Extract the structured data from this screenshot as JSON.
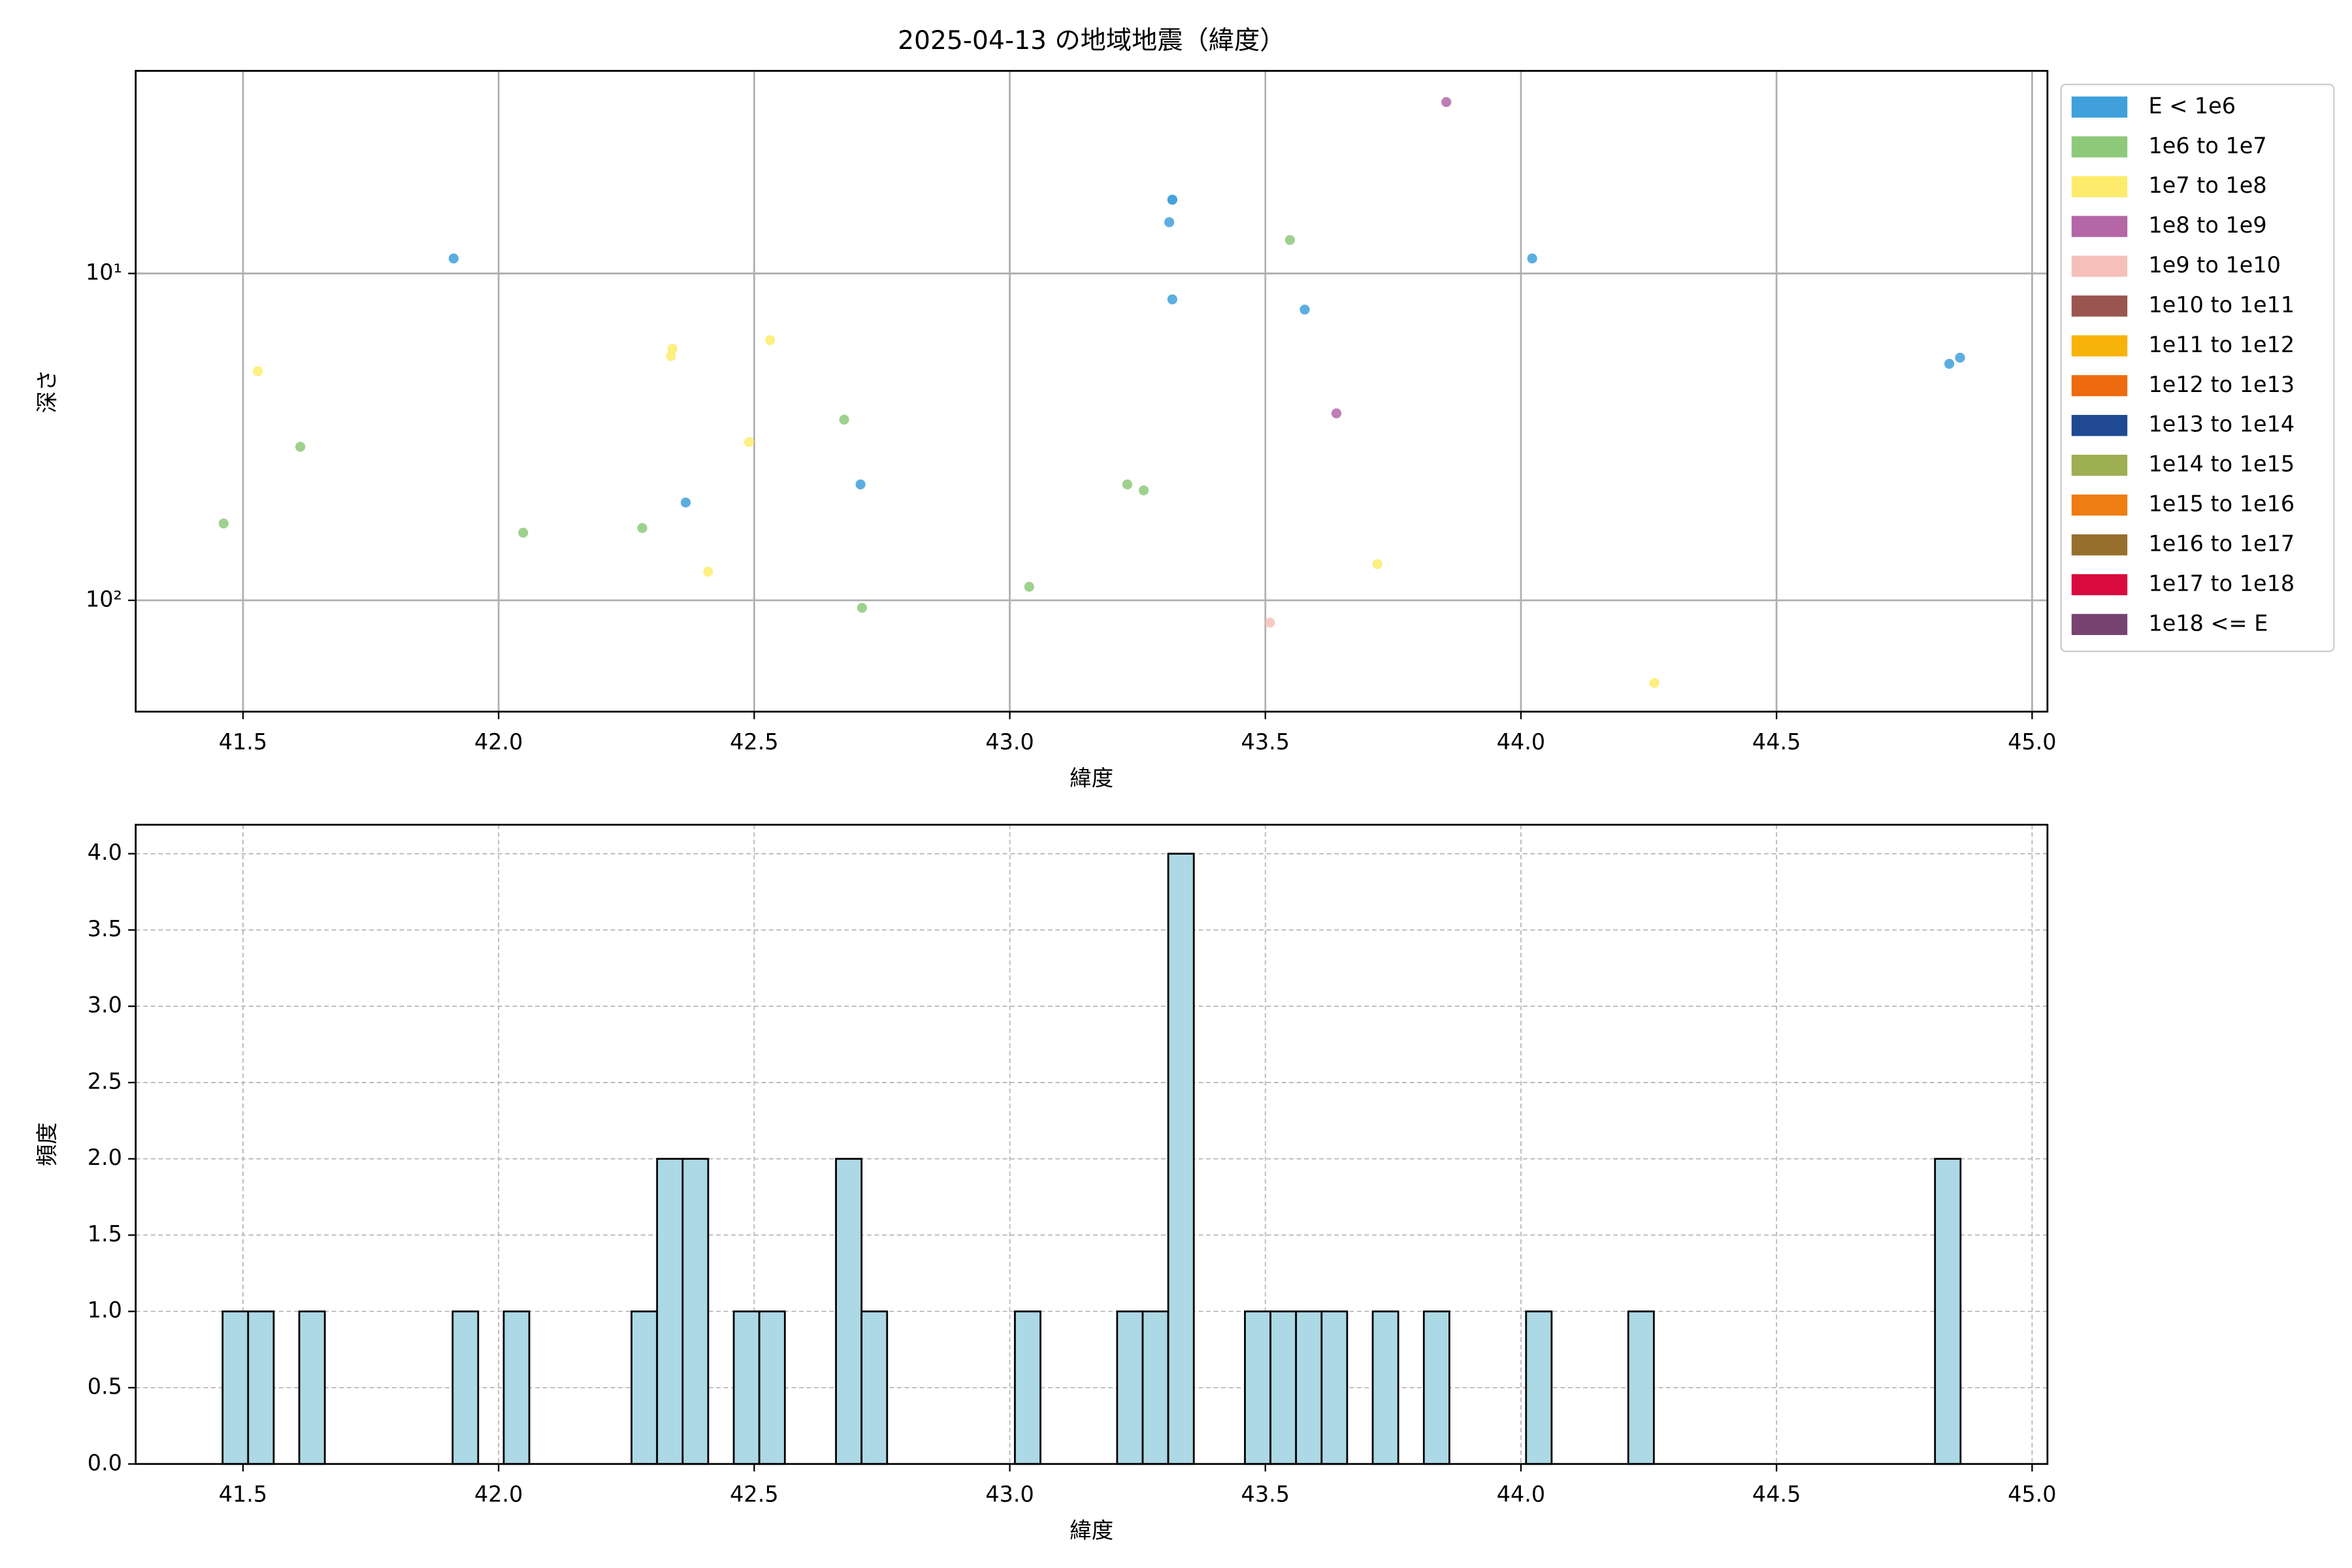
{
  "chart_data": [
    {
      "type": "scatter",
      "title": "2025-04-13 の地域地震（緯度）",
      "xlabel": "緯度",
      "ylabel": "深さ",
      "xlim": [
        41.29,
        45.03
      ],
      "xticks": [
        41.5,
        {
          "value": 42.0,
          "label": "42.0"
        },
        42.5,
        {
          "value": 43.0,
          "label": "43.0"
        },
        43.5,
        {
          "value": 44.0,
          "label": "44.0"
        },
        44.5,
        {
          "value": 45.0,
          "label": "45.0"
        }
      ],
      "ylim": [
        2.4,
        219
      ],
      "yscale": "log",
      "y_inverted": true,
      "yticks": [
        {
          "value": 10,
          "label": "10¹"
        },
        {
          "value": 100,
          "label": "10²"
        }
      ],
      "grid": true,
      "legend": "outside-right",
      "series": [
        {
          "name": "E < 1e6",
          "color": "#3fa0dc",
          "x": [
            41.912,
            42.366,
            42.708,
            43.318,
            43.318,
            43.312,
            43.318,
            43.577,
            44.022,
            44.838,
            44.859
          ],
          "values": [
            9.0,
            50.2,
            44.2,
            5.95,
            5.95,
            6.97,
            12.0,
            12.9,
            9.0,
            18.9,
            18.1
          ]
        },
        {
          "name": "1e6 to 1e7",
          "color": "#8ec97a",
          "x": [
            41.462,
            41.612,
            42.048,
            42.281,
            42.676,
            42.711,
            43.038,
            43.23,
            43.262,
            43.548
          ],
          "values": [
            58.2,
            33.9,
            62.1,
            60.1,
            28.0,
            105.4,
            90.9,
            44.2,
            46.1,
            7.9
          ]
        },
        {
          "name": "1e7 to 1e8",
          "color": "#fdec6b",
          "x": [
            41.529,
            42.34,
            42.337,
            42.531,
            42.49,
            42.41,
            43.719,
            44.261
          ],
          "values": [
            19.9,
            17.0,
            17.9,
            16.0,
            32.8,
            81.7,
            77.5,
            179
          ]
        },
        {
          "name": "1e8 to 1e9",
          "color": "#b466a6",
          "x": [
            43.854,
            43.639
          ],
          "values": [
            2.99,
            26.8
          ]
        },
        {
          "name": "1e9 to 1e10",
          "color": "#f6c0b9",
          "x": [
            43.509
          ],
          "values": [
            117
          ]
        },
        {
          "name": "1e10 to 1e11",
          "color": "#9a5550",
          "x": [],
          "values": []
        },
        {
          "name": "1e11 to 1e12",
          "color": "#f8b30b",
          "x": [],
          "values": []
        },
        {
          "name": "1e12 to 1e13",
          "color": "#ee6a0e",
          "x": [],
          "values": []
        },
        {
          "name": "1e13 to 1e14",
          "color": "#1f4a93",
          "x": [],
          "values": []
        },
        {
          "name": "1e14 to 1e15",
          "color": "#9eae52",
          "x": [],
          "values": []
        },
        {
          "name": "1e15 to 1e16",
          "color": "#ee7d13",
          "x": [],
          "values": []
        },
        {
          "name": "1e16 to 1e17",
          "color": "#976f2d",
          "x": [],
          "values": []
        },
        {
          "name": "1e17 to 1e18",
          "color": "#da0b3f",
          "x": [],
          "values": []
        },
        {
          "name": "1e18 <= E",
          "color": "#774371",
          "x": [],
          "values": []
        }
      ]
    },
    {
      "type": "histogram",
      "xlabel": "緯度",
      "ylabel": "頻度",
      "color": "#add8e6",
      "edgecolor": "#000000",
      "xlim": [
        41.29,
        45.03
      ],
      "xticks": [
        41.5,
        {
          "value": 42.0,
          "label": "42.0"
        },
        42.5,
        {
          "value": 43.0,
          "label": "43.0"
        },
        43.5,
        {
          "value": 44.0,
          "label": "44.0"
        },
        44.5,
        {
          "value": 45.0,
          "label": "45.0"
        }
      ],
      "ylim": [
        0,
        4.19
      ],
      "yticks": [
        {
          "value": 0,
          "label": "0.0"
        },
        0.5,
        {
          "value": 1,
          "label": "1.0"
        },
        1.5,
        {
          "value": 2,
          "label": "2.0"
        },
        2.5,
        {
          "value": 3,
          "label": "3.0"
        },
        3.5,
        {
          "value": 4,
          "label": "4.0"
        }
      ],
      "grid": "dashed",
      "bins": [
        41.46,
        41.51,
        41.56,
        41.61,
        41.66,
        41.71,
        41.76,
        41.81,
        41.86,
        41.91,
        41.96,
        42.01,
        42.06,
        42.11,
        42.16,
        42.21,
        42.26,
        42.31,
        42.36,
        42.41,
        42.46,
        42.51,
        42.56,
        42.61,
        42.66,
        42.71,
        42.76,
        42.81,
        42.86,
        42.91,
        42.96,
        43.01,
        43.06,
        43.11,
        43.16,
        43.21,
        43.26,
        43.31,
        43.36,
        43.41,
        43.46,
        43.51,
        43.56,
        43.61,
        43.66,
        43.71,
        43.76,
        43.81,
        43.86,
        43.91,
        43.96,
        44.01,
        44.06,
        44.11,
        44.16,
        44.21,
        44.26,
        44.31,
        44.36,
        44.41,
        44.46,
        44.51,
        44.56,
        44.61,
        44.66,
        44.71,
        44.76,
        44.81,
        44.86
      ],
      "values": [
        1,
        1,
        0,
        1,
        0,
        0,
        0,
        0,
        0,
        1,
        0,
        1,
        0,
        0,
        0,
        0,
        1,
        2,
        2,
        0,
        1,
        1,
        0,
        0,
        2,
        1,
        0,
        0,
        0,
        0,
        0,
        1,
        0,
        0,
        0,
        1,
        1,
        4,
        0,
        0,
        1,
        1,
        1,
        1,
        0,
        1,
        0,
        1,
        0,
        0,
        0,
        1,
        0,
        0,
        0,
        1,
        0,
        0,
        0,
        0,
        0,
        0,
        0,
        0,
        0,
        0,
        0,
        2
      ]
    }
  ]
}
